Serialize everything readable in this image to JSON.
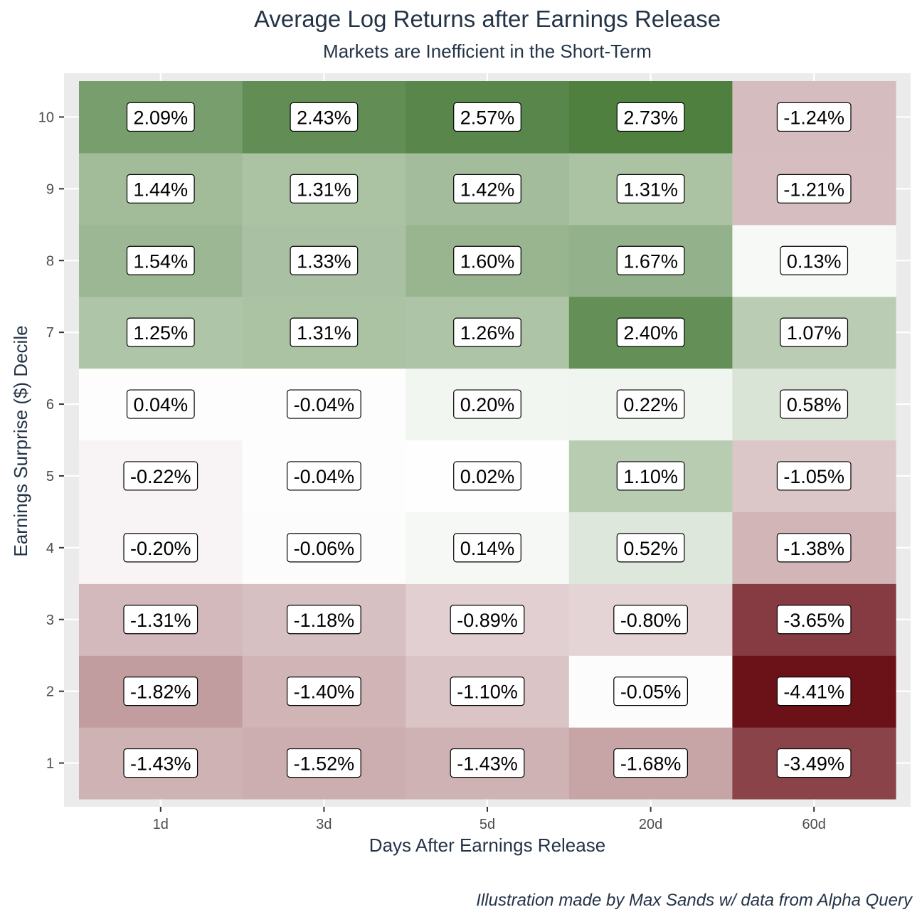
{
  "chart_data": {
    "type": "heatmap",
    "title": "Average Log Returns after Earnings Release",
    "subtitle": "Markets are Inefficient in the Short-Term",
    "xlabel": "Days After Earnings Release",
    "ylabel": "Earnings Surprise ($) Decile",
    "x_categories": [
      "1d",
      "3d",
      "5d",
      "20d",
      "60d"
    ],
    "y_categories": [
      "1",
      "2",
      "3",
      "4",
      "5",
      "6",
      "7",
      "8",
      "9",
      "10"
    ],
    "values": {
      "1": [
        -1.43,
        -1.52,
        -1.43,
        -1.68,
        -3.49
      ],
      "2": [
        -1.82,
        -1.4,
        -1.1,
        -0.05,
        -4.41
      ],
      "3": [
        -1.31,
        -1.18,
        -0.89,
        -0.8,
        -3.65
      ],
      "4": [
        -0.2,
        -0.06,
        0.14,
        0.52,
        -1.38
      ],
      "5": [
        -0.22,
        -0.04,
        0.02,
        1.1,
        -1.05
      ],
      "6": [
        0.04,
        -0.04,
        0.2,
        0.22,
        0.58
      ],
      "7": [
        1.25,
        1.31,
        1.26,
        2.4,
        1.07
      ],
      "8": [
        1.54,
        1.33,
        1.6,
        1.67,
        0.13
      ],
      "9": [
        1.44,
        1.31,
        1.42,
        1.31,
        -1.21
      ],
      "10": [
        2.09,
        2.43,
        2.57,
        2.73,
        -1.24
      ]
    },
    "label_format": "percent_2dp",
    "color_scale": {
      "low": "#6b1219",
      "mid": "#ffffff",
      "high": "#4f8040",
      "low_limit": -4.41,
      "high_limit": 2.73
    },
    "panel_background": "#ebebeb",
    "grid": true,
    "legend": "none"
  },
  "caption": "Illustration made by Max Sands w/ data from Alpha Query"
}
